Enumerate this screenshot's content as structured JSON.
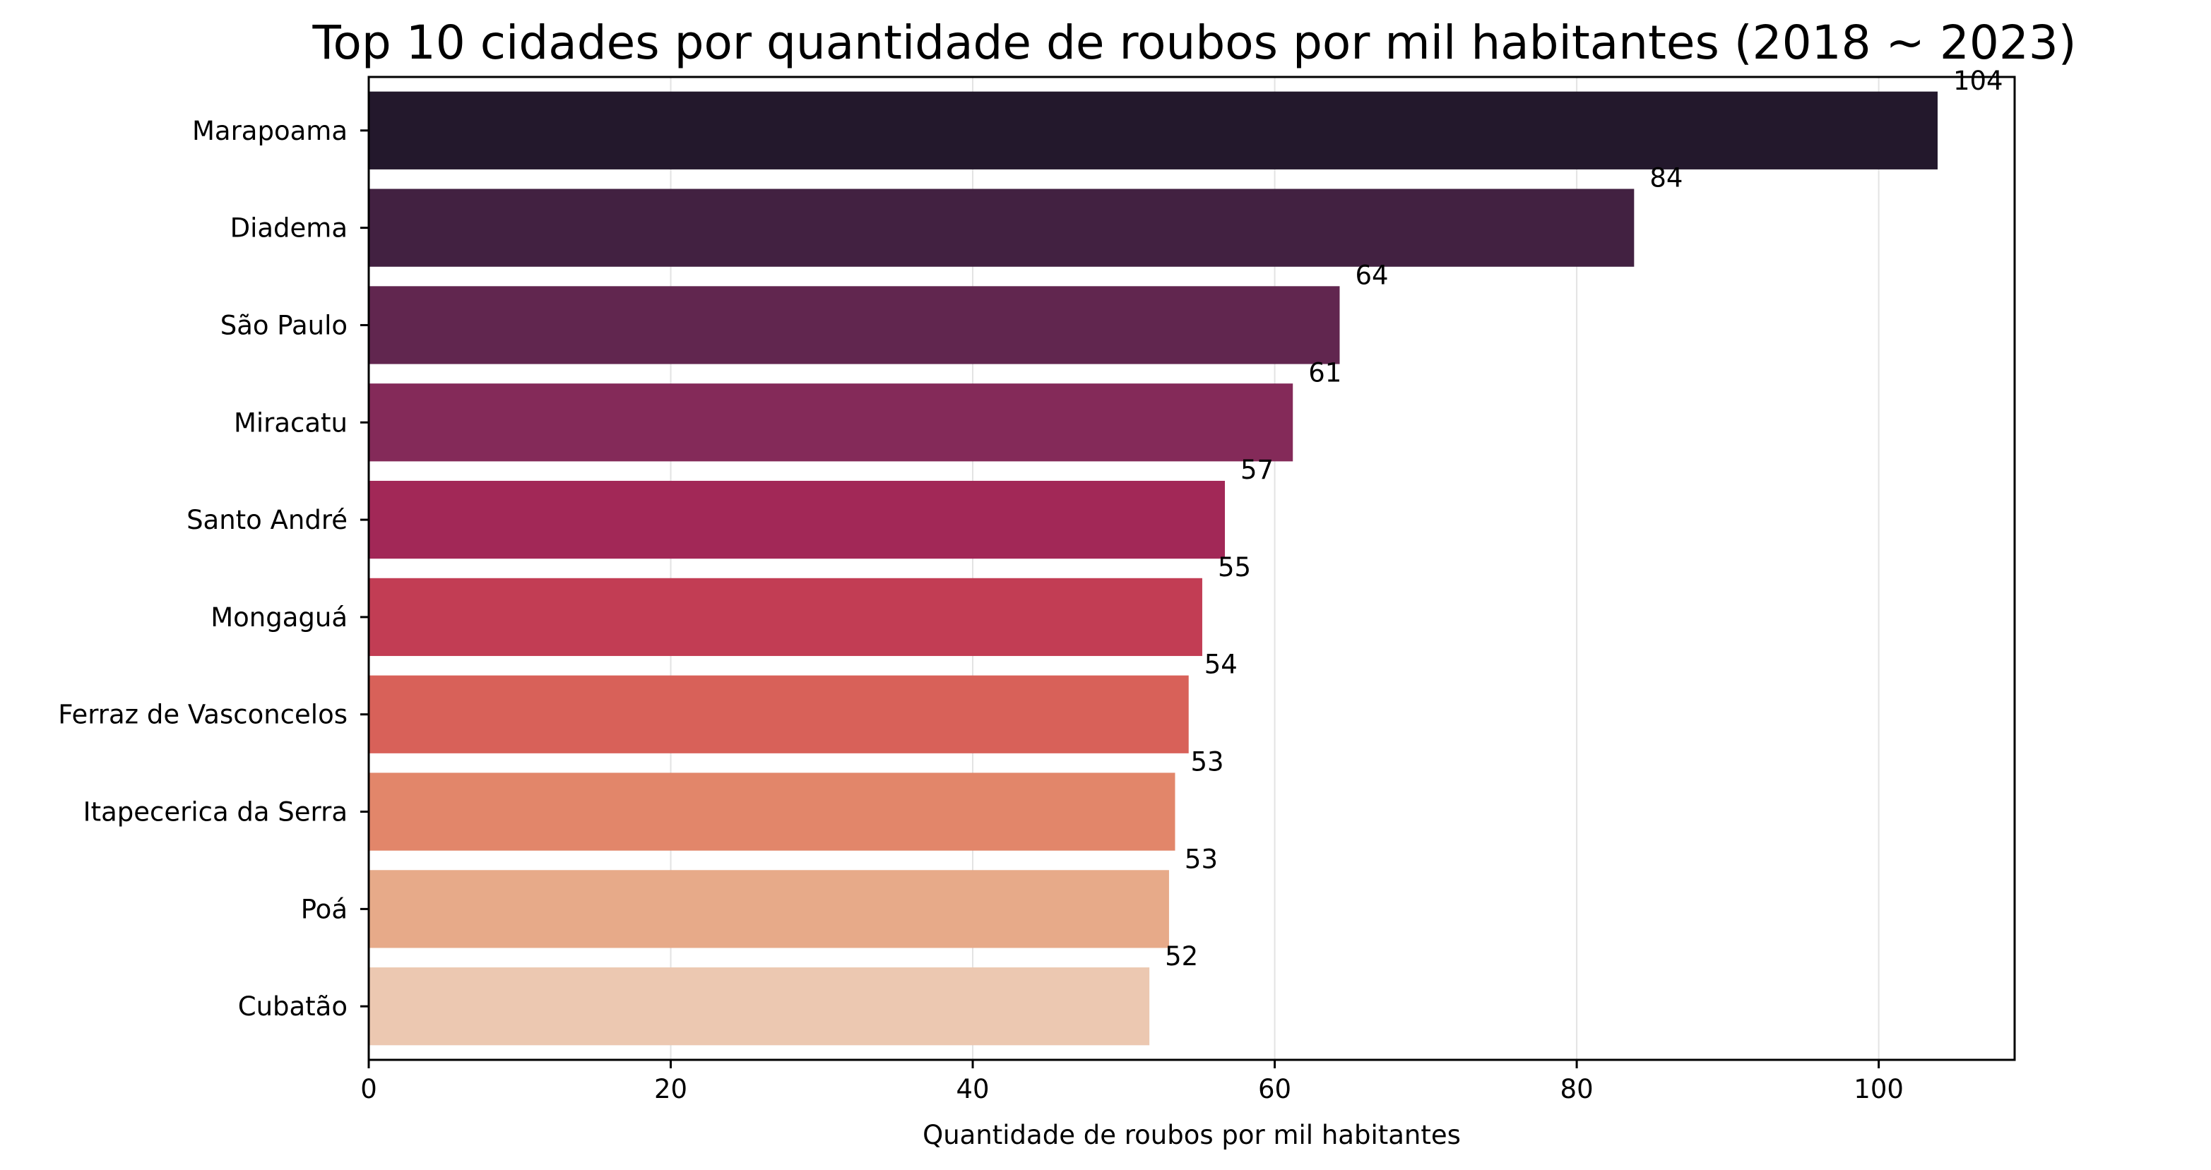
{
  "chart_data": {
    "type": "bar",
    "orientation": "horizontal",
    "title": "Top 10 cidades por quantidade de roubos por mil habitantes (2018 ~ 2023)",
    "xlabel": "Quantidade de roubos por mil habitantes",
    "ylabel": "",
    "xlim": [
      0,
      109
    ],
    "xticks": [
      0,
      20,
      40,
      60,
      80,
      100
    ],
    "grid": "vertical",
    "legend": "none",
    "categories": [
      "Marapoama",
      "Diadema",
      "São Paulo",
      "Miracatu",
      "Santo André",
      "Mongaguá",
      "Ferraz de Vasconcelos",
      "Itapecerica da Serra",
      "Poá",
      "Cubatão"
    ],
    "values": [
      103.9,
      83.8,
      64.3,
      61.2,
      56.7,
      55.2,
      54.3,
      53.4,
      53.0,
      51.7
    ],
    "data_labels": [
      "104",
      "84",
      "64",
      "61",
      "57",
      "55",
      "54",
      "53",
      "53",
      "52"
    ],
    "colors": [
      "#23182c",
      "#422141",
      "#61264f",
      "#842a59",
      "#a22857",
      "#c23d54",
      "#d86159",
      "#e2866a",
      "#e7aa89",
      "#ecc8b1"
    ]
  }
}
